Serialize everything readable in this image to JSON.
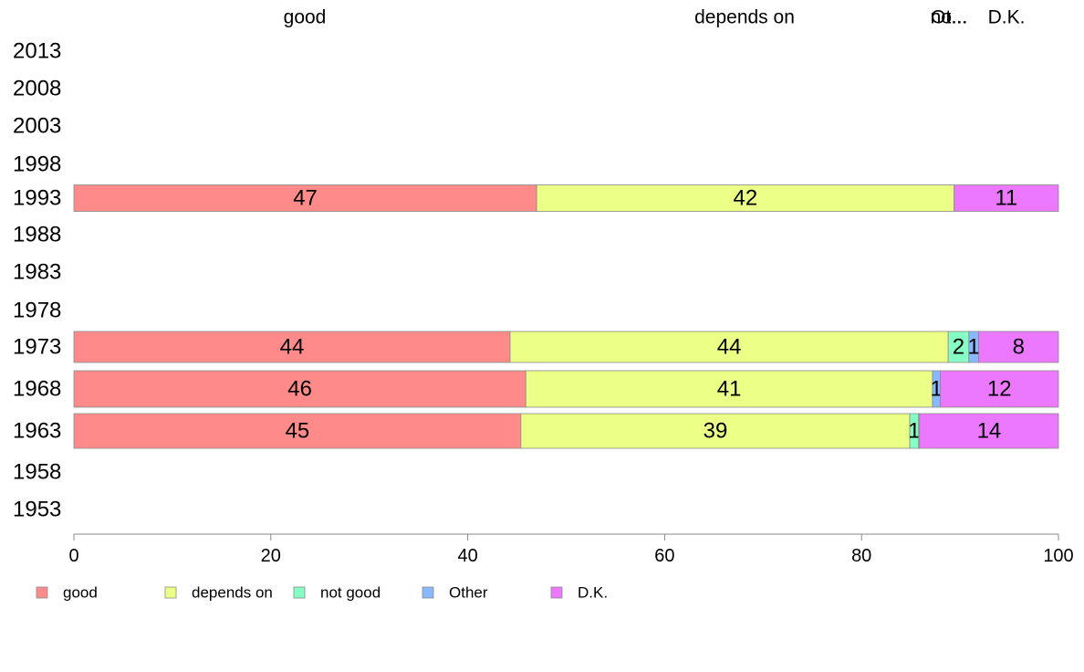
{
  "chart_data": {
    "type": "bar",
    "orientation": "horizontal",
    "stacked": true,
    "categories": [
      "2013",
      "2008",
      "2003",
      "1998",
      "1993",
      "1988",
      "1983",
      "1978",
      "1973",
      "1968",
      "1963",
      "1958",
      "1953"
    ],
    "top_labels": [
      "good",
      "depends on",
      "Ot...",
      "no...",
      "D.K."
    ],
    "series": [
      {
        "name": "good",
        "color": "#ff8a8a",
        "values": [
          null,
          null,
          null,
          null,
          47,
          null,
          null,
          null,
          44.3,
          45.9,
          45.4,
          null,
          null
        ]
      },
      {
        "name": "depends on",
        "color": "#ecff86",
        "values": [
          null,
          null,
          null,
          null,
          42.4,
          null,
          null,
          null,
          44.5,
          41.3,
          39.5,
          null,
          null
        ]
      },
      {
        "name": "not good",
        "color": "#86ffc4",
        "values": [
          null,
          null,
          null,
          null,
          0,
          null,
          null,
          null,
          2.1,
          0,
          0.9,
          null,
          null
        ]
      },
      {
        "name": "Other",
        "color": "#88b8ff",
        "values": [
          null,
          null,
          null,
          null,
          0,
          null,
          null,
          null,
          1.0,
          0.8,
          0.1,
          null,
          null
        ]
      },
      {
        "name": "D.K.",
        "color": "#ec78ff",
        "values": [
          null,
          null,
          null,
          null,
          10.6,
          null,
          null,
          null,
          8.1,
          12.0,
          14.1,
          null,
          null
        ]
      }
    ],
    "data_labels": [
      {
        "category": "1993",
        "labels": [
          "47",
          "42",
          "",
          "",
          "11"
        ]
      },
      {
        "category": "1973",
        "labels": [
          "44",
          "44",
          "2",
          "1",
          "8"
        ]
      },
      {
        "category": "1968",
        "labels": [
          "46",
          "41",
          "",
          "1",
          "12"
        ]
      },
      {
        "category": "1963",
        "labels": [
          "45",
          "39",
          "1",
          "",
          "14"
        ]
      }
    ],
    "xlim": [
      0,
      100
    ],
    "xticks": [
      "0",
      "20",
      "40",
      "60",
      "80",
      "100"
    ],
    "legend_position": "bottom-left",
    "grid": false
  }
}
